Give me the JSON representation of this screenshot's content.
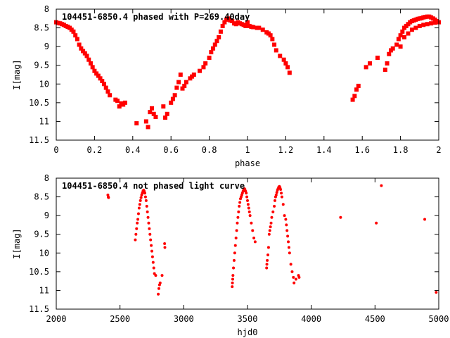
{
  "chart_data": [
    {
      "type": "scatter",
      "title": "104451-6850.4 phased with P=269.40day",
      "xlabel": "phase",
      "ylabel": "I[mag]",
      "xlim": [
        0,
        2
      ],
      "ylim": [
        8,
        11.5
      ],
      "y_inverted": true,
      "x_ticks": [
        0,
        0.2,
        0.4,
        0.6,
        0.8,
        1,
        1.2,
        1.4,
        1.6,
        1.8,
        2
      ],
      "x_tick_labels": [
        "0",
        "0.2",
        "0.4",
        "0.6",
        "0.8",
        "1",
        "1.2",
        "1.4",
        "1.6",
        "1.8",
        "2"
      ],
      "y_ticks": [
        8,
        8.5,
        9,
        9.5,
        10,
        10.5,
        11,
        11.5
      ],
      "y_tick_labels": [
        "8",
        "8.5",
        "9",
        "9.5",
        "10",
        "10.5",
        "11",
        "11.5"
      ],
      "grid": false,
      "marker_color": "#ff0000",
      "series": [
        {
          "points": [
            [
              0.0,
              8.35
            ],
            [
              0.01,
              8.37
            ],
            [
              0.02,
              8.38
            ],
            [
              0.03,
              8.4
            ],
            [
              0.04,
              8.42
            ],
            [
              0.05,
              8.45
            ],
            [
              0.06,
              8.47
            ],
            [
              0.07,
              8.5
            ],
            [
              0.08,
              8.55
            ],
            [
              0.09,
              8.6
            ],
            [
              0.1,
              8.7
            ],
            [
              0.11,
              8.8
            ],
            [
              0.12,
              8.95
            ],
            [
              0.13,
              9.05
            ],
            [
              0.14,
              9.12
            ],
            [
              0.15,
              9.18
            ],
            [
              0.16,
              9.25
            ],
            [
              0.17,
              9.35
            ],
            [
              0.18,
              9.45
            ],
            [
              0.19,
              9.55
            ],
            [
              0.2,
              9.65
            ],
            [
              0.21,
              9.72
            ],
            [
              0.22,
              9.78
            ],
            [
              0.23,
              9.85
            ],
            [
              0.24,
              9.92
            ],
            [
              0.25,
              10.0
            ],
            [
              0.26,
              10.1
            ],
            [
              0.27,
              10.2
            ],
            [
              0.28,
              10.3
            ],
            [
              0.31,
              10.42
            ],
            [
              0.32,
              10.45
            ],
            [
              0.33,
              10.6
            ],
            [
              0.34,
              10.52
            ],
            [
              0.35,
              10.55
            ],
            [
              0.36,
              10.5
            ],
            [
              0.42,
              11.05
            ],
            [
              0.47,
              11.0
            ],
            [
              0.48,
              11.15
            ],
            [
              0.49,
              10.75
            ],
            [
              0.5,
              10.65
            ],
            [
              0.51,
              10.8
            ],
            [
              0.52,
              10.88
            ],
            [
              0.56,
              10.6
            ],
            [
              0.57,
              10.9
            ],
            [
              0.58,
              10.8
            ],
            [
              0.6,
              10.5
            ],
            [
              0.61,
              10.4
            ],
            [
              0.62,
              10.3
            ],
            [
              0.63,
              10.1
            ],
            [
              0.64,
              9.95
            ],
            [
              0.65,
              9.75
            ],
            [
              0.66,
              10.12
            ],
            [
              0.67,
              10.05
            ],
            [
              0.68,
              9.95
            ],
            [
              0.7,
              9.85
            ],
            [
              0.71,
              9.8
            ],
            [
              0.72,
              9.75
            ],
            [
              0.75,
              9.65
            ],
            [
              0.77,
              9.55
            ],
            [
              0.78,
              9.45
            ],
            [
              0.8,
              9.3
            ],
            [
              0.81,
              9.15
            ],
            [
              0.82,
              9.05
            ],
            [
              0.83,
              8.95
            ],
            [
              0.84,
              8.85
            ],
            [
              0.85,
              8.75
            ],
            [
              0.86,
              8.6
            ],
            [
              0.87,
              8.45
            ],
            [
              0.88,
              8.35
            ],
            [
              0.89,
              8.28
            ],
            [
              0.9,
              8.25
            ],
            [
              0.91,
              8.3
            ],
            [
              0.92,
              8.32
            ],
            [
              0.93,
              8.38
            ],
            [
              0.94,
              8.4
            ],
            [
              0.95,
              8.35
            ],
            [
              0.96,
              8.38
            ],
            [
              0.97,
              8.4
            ],
            [
              0.98,
              8.42
            ],
            [
              0.99,
              8.45
            ],
            [
              1.0,
              8.35
            ],
            [
              1.01,
              8.45
            ],
            [
              1.02,
              8.47
            ],
            [
              1.03,
              8.48
            ],
            [
              1.05,
              8.5
            ],
            [
              1.06,
              8.5
            ],
            [
              1.08,
              8.55
            ],
            [
              1.1,
              8.62
            ],
            [
              1.11,
              8.65
            ],
            [
              1.12,
              8.7
            ],
            [
              1.13,
              8.8
            ],
            [
              1.14,
              8.95
            ],
            [
              1.15,
              9.1
            ],
            [
              1.17,
              9.25
            ],
            [
              1.19,
              9.35
            ],
            [
              1.2,
              9.45
            ],
            [
              1.21,
              9.55
            ],
            [
              1.22,
              9.7
            ],
            [
              1.55,
              10.42
            ],
            [
              1.56,
              10.32
            ],
            [
              1.57,
              10.15
            ],
            [
              1.58,
              10.05
            ],
            [
              1.62,
              9.55
            ],
            [
              1.64,
              9.45
            ],
            [
              1.68,
              9.3
            ],
            [
              1.72,
              9.62
            ],
            [
              1.73,
              9.45
            ],
            [
              1.74,
              9.2
            ],
            [
              1.75,
              9.1
            ],
            [
              1.76,
              9.05
            ],
            [
              1.78,
              8.95
            ],
            [
              1.79,
              8.8
            ],
            [
              1.8,
              8.7
            ],
            [
              1.81,
              8.6
            ],
            [
              1.82,
              8.5
            ],
            [
              1.83,
              8.45
            ],
            [
              1.84,
              8.4
            ],
            [
              1.85,
              8.35
            ],
            [
              1.86,
              8.32
            ],
            [
              1.87,
              8.3
            ],
            [
              1.88,
              8.28
            ],
            [
              1.89,
              8.26
            ],
            [
              1.9,
              8.25
            ],
            [
              1.91,
              8.24
            ],
            [
              1.92,
              8.22
            ],
            [
              1.93,
              8.21
            ],
            [
              1.94,
              8.2
            ],
            [
              1.95,
              8.2
            ],
            [
              1.96,
              8.22
            ],
            [
              1.97,
              8.25
            ],
            [
              1.98,
              8.28
            ],
            [
              1.99,
              8.32
            ],
            [
              2.0,
              8.35
            ],
            [
              1.8,
              9.0
            ],
            [
              1.82,
              8.75
            ],
            [
              1.84,
              8.65
            ],
            [
              1.86,
              8.55
            ],
            [
              1.88,
              8.5
            ],
            [
              1.9,
              8.45
            ],
            [
              1.92,
              8.42
            ],
            [
              1.94,
              8.4
            ],
            [
              1.96,
              8.38
            ],
            [
              1.98,
              8.36
            ]
          ]
        }
      ]
    },
    {
      "type": "scatter",
      "title": "104451-6850.4 not phased light curve",
      "xlabel": "hjd0",
      "ylabel": "I[mag]",
      "xlim": [
        2000,
        5000
      ],
      "ylim": [
        8,
        11.5
      ],
      "y_inverted": true,
      "x_ticks": [
        2000,
        2500,
        3000,
        3500,
        4000,
        4500,
        5000
      ],
      "x_tick_labels": [
        "2000",
        "2500",
        "3000",
        "3500",
        "4000",
        "4500",
        "5000"
      ],
      "y_ticks": [
        8,
        8.5,
        9,
        9.5,
        10,
        10.5,
        11,
        11.5
      ],
      "y_tick_labels": [
        "8",
        "8.5",
        "9",
        "9.5",
        "10",
        "10.5",
        "11",
        "11.5"
      ],
      "grid": false,
      "marker_color": "#ff0000",
      "series": [
        {
          "points": [
            [
              2405,
              8.45
            ],
            [
              2408,
              8.5
            ],
            [
              2410,
              8.52
            ],
            [
              2620,
              9.65
            ],
            [
              2625,
              9.5
            ],
            [
              2630,
              9.35
            ],
            [
              2635,
              9.2
            ],
            [
              2640,
              9.1
            ],
            [
              2645,
              8.95
            ],
            [
              2650,
              8.8
            ],
            [
              2655,
              8.7
            ],
            [
              2660,
              8.6
            ],
            [
              2665,
              8.52
            ],
            [
              2670,
              8.45
            ],
            [
              2675,
              8.4
            ],
            [
              2680,
              8.35
            ],
            [
              2685,
              8.32
            ],
            [
              2690,
              8.35
            ],
            [
              2695,
              8.4
            ],
            [
              2700,
              8.5
            ],
            [
              2705,
              8.6
            ],
            [
              2710,
              8.75
            ],
            [
              2715,
              8.9
            ],
            [
              2720,
              9.05
            ],
            [
              2725,
              9.2
            ],
            [
              2730,
              9.35
            ],
            [
              2735,
              9.5
            ],
            [
              2740,
              9.65
            ],
            [
              2745,
              9.8
            ],
            [
              2750,
              9.95
            ],
            [
              2755,
              10.1
            ],
            [
              2760,
              10.25
            ],
            [
              2765,
              10.4
            ],
            [
              2770,
              10.55
            ],
            [
              2780,
              10.6
            ],
            [
              2800,
              11.1
            ],
            [
              2805,
              10.95
            ],
            [
              2810,
              10.85
            ],
            [
              2815,
              10.8
            ],
            [
              2830,
              10.6
            ],
            [
              2850,
              9.75
            ],
            [
              2852,
              9.85
            ],
            [
              3380,
              10.9
            ],
            [
              3382,
              10.8
            ],
            [
              3384,
              10.7
            ],
            [
              3386,
              10.6
            ],
            [
              3390,
              10.4
            ],
            [
              3395,
              10.2
            ],
            [
              3400,
              10.0
            ],
            [
              3405,
              9.8
            ],
            [
              3410,
              9.6
            ],
            [
              3415,
              9.4
            ],
            [
              3420,
              9.2
            ],
            [
              3425,
              9.05
            ],
            [
              3430,
              8.9
            ],
            [
              3435,
              8.75
            ],
            [
              3440,
              8.65
            ],
            [
              3445,
              8.55
            ],
            [
              3450,
              8.5
            ],
            [
              3455,
              8.45
            ],
            [
              3460,
              8.4
            ],
            [
              3465,
              8.35
            ],
            [
              3470,
              8.3
            ],
            [
              3475,
              8.28
            ],
            [
              3480,
              8.3
            ],
            [
              3485,
              8.35
            ],
            [
              3490,
              8.4
            ],
            [
              3495,
              8.5
            ],
            [
              3500,
              8.6
            ],
            [
              3505,
              8.7
            ],
            [
              3510,
              8.8
            ],
            [
              3515,
              8.9
            ],
            [
              3520,
              9.0
            ],
            [
              3530,
              9.2
            ],
            [
              3540,
              9.4
            ],
            [
              3550,
              9.6
            ],
            [
              3560,
              9.7
            ],
            [
              3650,
              10.4
            ],
            [
              3652,
              10.3
            ],
            [
              3655,
              10.2
            ],
            [
              3660,
              10.05
            ],
            [
              3665,
              9.85
            ],
            [
              3670,
              9.5
            ],
            [
              3675,
              9.4
            ],
            [
              3680,
              9.3
            ],
            [
              3685,
              9.2
            ],
            [
              3690,
              9.05
            ],
            [
              3700,
              8.9
            ],
            [
              3710,
              8.75
            ],
            [
              3715,
              8.6
            ],
            [
              3720,
              8.5
            ],
            [
              3725,
              8.45
            ],
            [
              3730,
              8.38
            ],
            [
              3735,
              8.32
            ],
            [
              3740,
              8.28
            ],
            [
              3745,
              8.24
            ],
            [
              3750,
              8.22
            ],
            [
              3755,
              8.25
            ],
            [
              3760,
              8.3
            ],
            [
              3765,
              8.4
            ],
            [
              3770,
              8.5
            ],
            [
              3780,
              8.7
            ],
            [
              3790,
              9.0
            ],
            [
              3800,
              9.1
            ],
            [
              3805,
              9.25
            ],
            [
              3810,
              9.4
            ],
            [
              3815,
              9.55
            ],
            [
              3820,
              9.7
            ],
            [
              3825,
              9.85
            ],
            [
              3830,
              10.0
            ],
            [
              3840,
              10.3
            ],
            [
              3850,
              10.5
            ],
            [
              3860,
              10.65
            ],
            [
              3865,
              10.8
            ],
            [
              3880,
              10.7
            ],
            [
              3900,
              10.6
            ],
            [
              3905,
              10.65
            ],
            [
              4230,
              9.05
            ],
            [
              4510,
              9.2
            ],
            [
              4550,
              8.2
            ],
            [
              4890,
              9.1
            ],
            [
              4980,
              11.05
            ]
          ]
        }
      ]
    }
  ]
}
